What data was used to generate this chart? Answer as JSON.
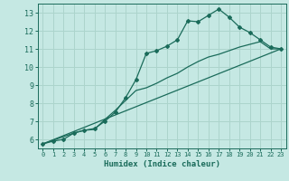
{
  "title": "",
  "xlabel": "Humidex (Indice chaleur)",
  "xlim": [
    -0.5,
    23.5
  ],
  "ylim": [
    5.5,
    13.5
  ],
  "xticks": [
    0,
    1,
    2,
    3,
    4,
    5,
    6,
    7,
    8,
    9,
    10,
    11,
    12,
    13,
    14,
    15,
    16,
    17,
    18,
    19,
    20,
    21,
    22,
    23
  ],
  "yticks": [
    6,
    7,
    8,
    9,
    10,
    11,
    12,
    13
  ],
  "background_color": "#c5e8e3",
  "grid_color": "#acd4cc",
  "line_color": "#1a6b5a",
  "line1_x": [
    0,
    1,
    2,
    3,
    4,
    5,
    6,
    7,
    8,
    9,
    10,
    11,
    12,
    13,
    14,
    15,
    16,
    17,
    18,
    19,
    20,
    21,
    22,
    23
  ],
  "line1_y": [
    5.75,
    5.9,
    6.0,
    6.35,
    6.5,
    6.6,
    7.0,
    7.5,
    8.3,
    9.3,
    10.75,
    10.9,
    11.15,
    11.5,
    12.55,
    12.5,
    12.85,
    13.2,
    12.75,
    12.2,
    11.9,
    11.5,
    11.1,
    11.0
  ],
  "line2_x": [
    0,
    3,
    4,
    5,
    6,
    7,
    8,
    9,
    10,
    11,
    12,
    13,
    14,
    15,
    16,
    17,
    18,
    19,
    20,
    21,
    22,
    23
  ],
  "line2_y": [
    5.75,
    6.35,
    6.5,
    6.55,
    7.1,
    7.6,
    8.15,
    8.7,
    8.85,
    9.1,
    9.4,
    9.65,
    10.0,
    10.3,
    10.55,
    10.7,
    10.9,
    11.1,
    11.25,
    11.4,
    11.0,
    11.0
  ],
  "line3_x": [
    0,
    23
  ],
  "line3_y": [
    5.75,
    11.0
  ]
}
